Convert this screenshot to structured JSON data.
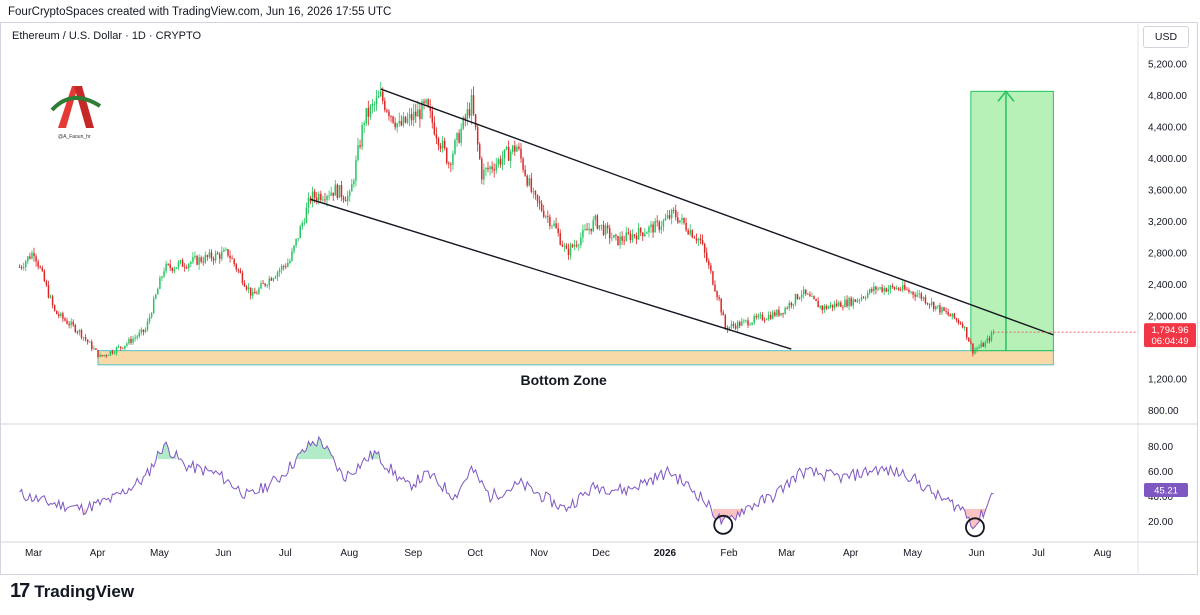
{
  "header": {
    "caption": "FourCryptoSpaces created with TradingView.com, Jun 16, 2026 17:55 UTC"
  },
  "symbol": {
    "title": "Ethereum / U.S. Dollar · 1D · CRYPTO",
    "currency": "USD"
  },
  "logo": {
    "tagline": "@A_Faoun_hr"
  },
  "footer": {
    "brand": "TradingView",
    "icon": "tradingview-logo-icon"
  },
  "colors": {
    "up": "#22c55e",
    "down": "#dc2626",
    "rsi": "#7e57c2",
    "target_zone": "#7be67b",
    "bottom_zone": "#f8d9a8",
    "price_tag": "#f23645",
    "rsi_tag": "#7e57c2"
  },
  "chart_data": {
    "type": "candlestick",
    "price_axis": {
      "ticks": [
        "5,200.00",
        "4,800.00",
        "4,400.00",
        "4,000.00",
        "3,600.00",
        "3,200.00",
        "2,800.00",
        "2,400.00",
        "2,000.00",
        "1,200.00",
        "800.00"
      ],
      "range": [
        680,
        5400
      ]
    },
    "time_axis": {
      "labels": [
        "Mar",
        "Apr",
        "May",
        "Jun",
        "Jul",
        "Aug",
        "Sep",
        "Oct",
        "Nov",
        "Dec",
        "2026",
        "Feb",
        "Mar",
        "Apr",
        "May",
        "Jun",
        "Jul",
        "Aug"
      ],
      "bold_label": "2026"
    },
    "price_series": {
      "anchors": [
        [
          "2025-03-01",
          2620
        ],
        [
          "2025-03-08",
          2820
        ],
        [
          "2025-03-18",
          2050
        ],
        [
          "2025-03-30",
          1800
        ],
        [
          "2025-04-09",
          1480
        ],
        [
          "2025-04-20",
          1620
        ],
        [
          "2025-05-01",
          1820
        ],
        [
          "2025-05-10",
          2600
        ],
        [
          "2025-05-25",
          2700
        ],
        [
          "2025-06-10",
          2800
        ],
        [
          "2025-06-22",
          2250
        ],
        [
          "2025-07-01",
          2500
        ],
        [
          "2025-07-10",
          2700
        ],
        [
          "2025-07-20",
          3500
        ],
        [
          "2025-08-01",
          3600
        ],
        [
          "2025-08-08",
          3500
        ],
        [
          "2025-08-15",
          4500
        ],
        [
          "2025-08-23",
          4780
        ],
        [
          "2025-09-01",
          4400
        ],
        [
          "2025-09-14",
          4650
        ],
        [
          "2025-09-25",
          3950
        ],
        [
          "2025-10-06",
          4700
        ],
        [
          "2025-10-11",
          3800
        ],
        [
          "2025-10-28",
          4150
        ],
        [
          "2025-11-05",
          3500
        ],
        [
          "2025-11-15",
          3150
        ],
        [
          "2025-11-21",
          2800
        ],
        [
          "2025-12-05",
          3200
        ],
        [
          "2025-12-15",
          2950
        ],
        [
          "2026-01-05",
          3150
        ],
        [
          "2026-01-12",
          3300
        ],
        [
          "2026-01-25",
          2950
        ],
        [
          "2026-02-03",
          2200
        ],
        [
          "2026-02-06",
          1850
        ],
        [
          "2026-02-20",
          1950
        ],
        [
          "2026-03-05",
          2050
        ],
        [
          "2026-03-15",
          2300
        ],
        [
          "2026-03-25",
          2100
        ],
        [
          "2026-04-10",
          2200
        ],
        [
          "2026-04-20",
          2350
        ],
        [
          "2026-05-01",
          2350
        ],
        [
          "2026-05-10",
          2280
        ],
        [
          "2026-05-20",
          2100
        ],
        [
          "2026-06-01",
          1900
        ],
        [
          "2026-06-06",
          1560
        ],
        [
          "2026-06-12",
          1650
        ],
        [
          "2026-06-16",
          1795
        ]
      ]
    },
    "last_price": "1,794.96",
    "countdown": "06:04:49",
    "trendlines": [
      {
        "name": "upper-trendline",
        "from": [
          "2025-08-23",
          4880
        ],
        "to": [
          "2026-07-15",
          1760
        ]
      },
      {
        "name": "lower-trendline",
        "from": [
          "2025-07-20",
          3480
        ],
        "to": [
          "2026-03-10",
          1580
        ]
      }
    ],
    "bottom_zone": {
      "label": "Bottom Zone",
      "from": "2025-04-08",
      "to": "2026-07-15",
      "low": 1380,
      "high": 1560
    },
    "target_zone": {
      "from": "2026-06-05",
      "to": "2026-07-15",
      "low": 1560,
      "high": 4850
    },
    "target_arrow": {
      "at": "2026-06-22",
      "from_price": 1560,
      "to_price": 4850
    },
    "rsi": {
      "ticks": [
        "80.00",
        "60.00",
        "40.00",
        "20.00"
      ],
      "range": [
        5,
        95
      ],
      "current": "45.21",
      "anchors": [
        [
          "2025-03-01",
          42
        ],
        [
          "2025-03-15",
          35
        ],
        [
          "2025-04-01",
          30
        ],
        [
          "2025-04-15",
          38
        ],
        [
          "2025-05-01",
          55
        ],
        [
          "2025-05-10",
          82
        ],
        [
          "2025-05-20",
          65
        ],
        [
          "2025-06-05",
          58
        ],
        [
          "2025-06-20",
          40
        ],
        [
          "2025-07-05",
          55
        ],
        [
          "2025-07-20",
          82
        ],
        [
          "2025-07-25",
          85
        ],
        [
          "2025-08-05",
          55
        ],
        [
          "2025-08-20",
          75
        ],
        [
          "2025-09-05",
          48
        ],
        [
          "2025-09-15",
          58
        ],
        [
          "2025-09-28",
          40
        ],
        [
          "2025-10-06",
          62
        ],
        [
          "2025-10-15",
          40
        ],
        [
          "2025-10-30",
          50
        ],
        [
          "2025-11-20",
          30
        ],
        [
          "2025-12-05",
          48
        ],
        [
          "2025-12-20",
          45
        ],
        [
          "2026-01-10",
          60
        ],
        [
          "2026-01-25",
          40
        ],
        [
          "2026-02-05",
          18
        ],
        [
          "2026-02-15",
          30
        ],
        [
          "2026-03-01",
          40
        ],
        [
          "2026-03-15",
          60
        ],
        [
          "2026-04-05",
          55
        ],
        [
          "2026-04-20",
          62
        ],
        [
          "2026-05-05",
          58
        ],
        [
          "2026-05-20",
          40
        ],
        [
          "2026-06-01",
          30
        ],
        [
          "2026-06-07",
          16
        ],
        [
          "2026-06-12",
          30
        ],
        [
          "2026-06-16",
          45
        ]
      ],
      "circled_lows": [
        "2026-02-05",
        "2026-06-07"
      ]
    }
  }
}
